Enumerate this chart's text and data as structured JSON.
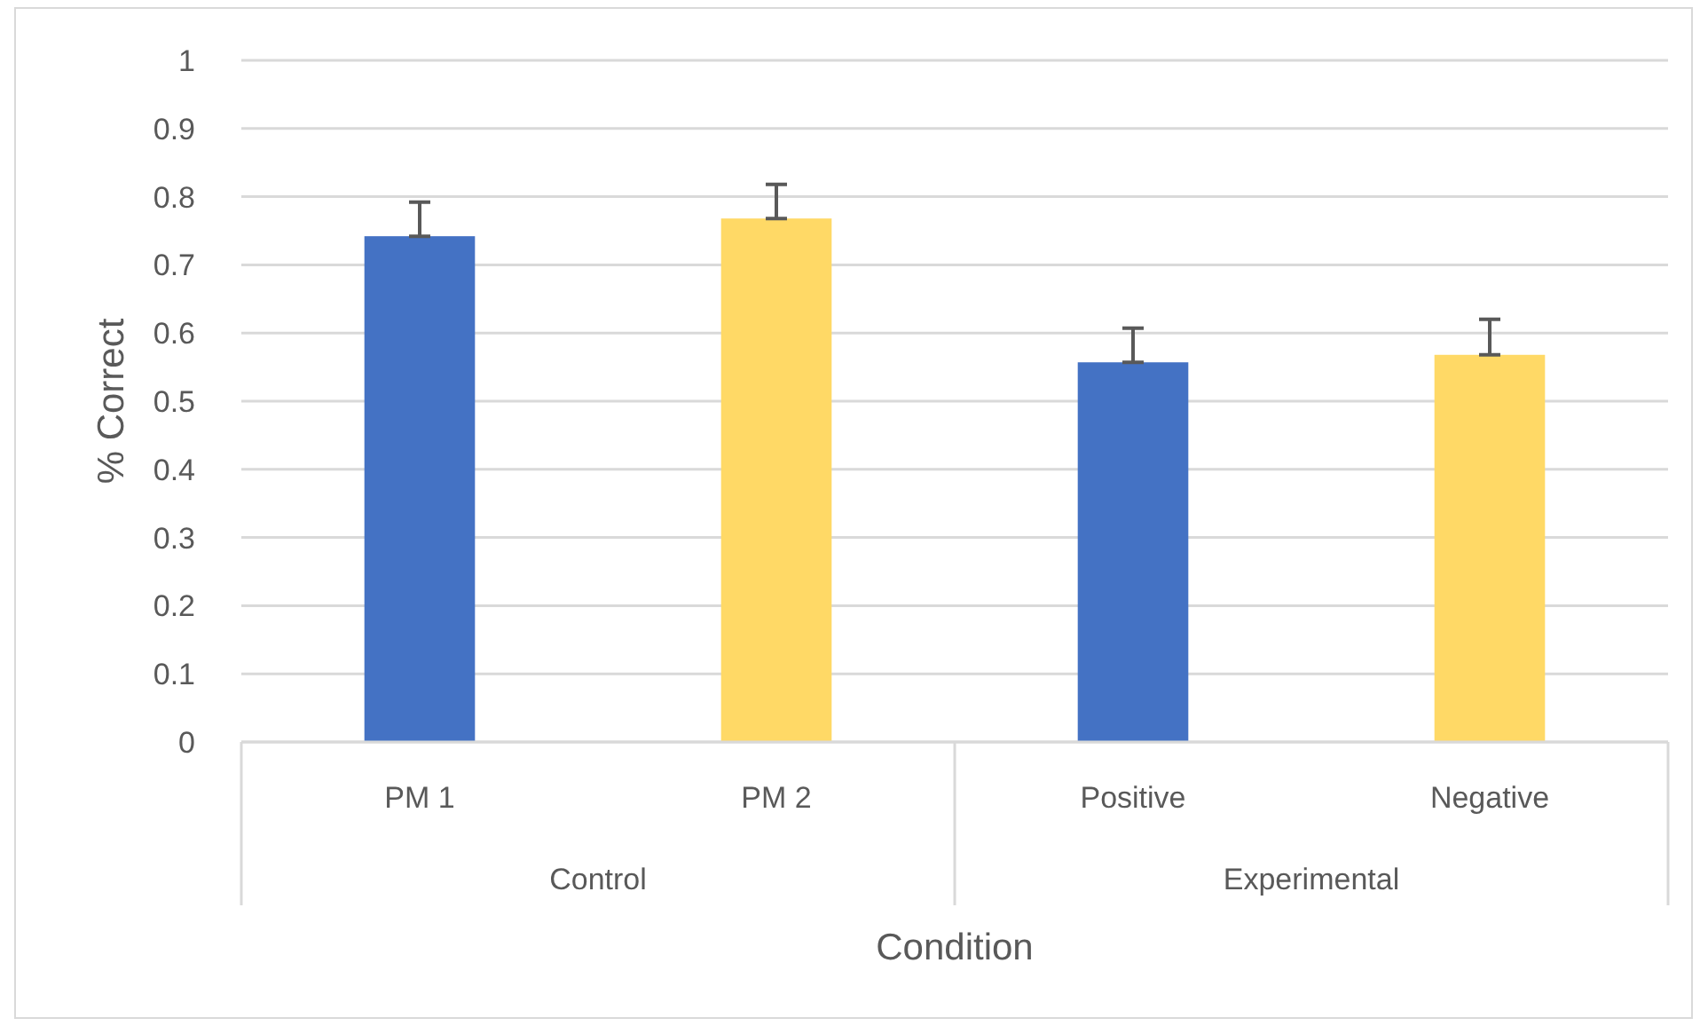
{
  "chart_data": {
    "type": "bar",
    "xlabel": "Condition",
    "ylabel": "% Correct",
    "categories": [
      "PM 1",
      "PM 2",
      "Positive",
      "Negative"
    ],
    "values": [
      0.742,
      0.768,
      0.557,
      0.568
    ],
    "colors": [
      "#4472c4",
      "#ffd966",
      "#4472c4",
      "#ffd966"
    ],
    "errors": [
      [
        0.742,
        0.792
      ],
      [
        0.768,
        0.818
      ],
      [
        0.557,
        0.607
      ],
      [
        0.568,
        0.62
      ]
    ],
    "annotations": [
      "Control",
      "Experimental"
    ],
    "ylim": [
      0,
      1
    ],
    "yticks": [
      0,
      0.1,
      0.2,
      0.3,
      0.4,
      0.5,
      0.6,
      0.7,
      0.8,
      0.9,
      1
    ],
    "grid": "y"
  }
}
